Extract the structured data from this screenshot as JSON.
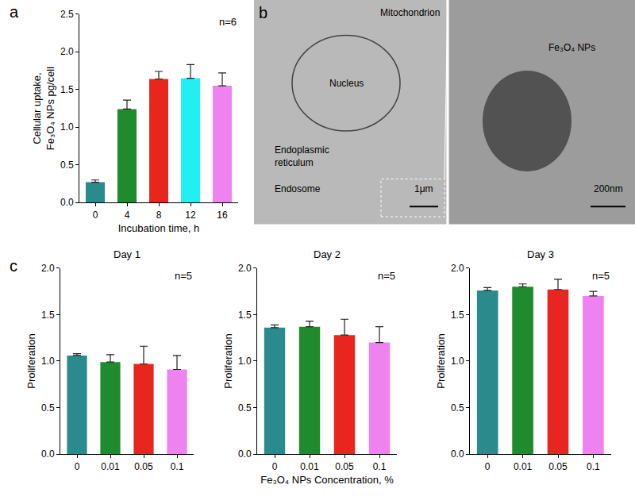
{
  "chart_data": [
    {
      "panel": "a",
      "type": "bar",
      "xlabel": "Incubation time, h",
      "ylabel": "Cellular uptake,\nFe₃O₄ NPs pg/cell",
      "annotations": [
        "n=6"
      ],
      "categories": [
        "0",
        "4",
        "8",
        "12",
        "16"
      ],
      "values": [
        0.27,
        1.24,
        1.64,
        1.65,
        1.55
      ],
      "errors": [
        0.03,
        0.12,
        0.1,
        0.18,
        0.17
      ],
      "colors": [
        "#2b8a8c",
        "#1f8a2e",
        "#e8261f",
        "#22f0f0",
        "#ee82ee"
      ],
      "ylim": [
        0,
        2.5
      ],
      "yticks": [
        {
          "value": 0,
          "label": "0.0"
        },
        0.5,
        {
          "value": 1,
          "label": "1.0"
        },
        1.5,
        {
          "value": 2,
          "label": "2.0"
        },
        2.5
      ]
    },
    {
      "panel": "c",
      "type": "bar",
      "title": "Day 1",
      "ylabel": "Proliferation",
      "annotations": [
        "n=5"
      ],
      "categories": [
        "0",
        "0.01",
        "0.05",
        "0.1"
      ],
      "values": [
        1.06,
        0.99,
        0.97,
        0.91
      ],
      "errors": [
        0.02,
        0.08,
        0.19,
        0.15
      ],
      "colors": [
        "#2b8a8c",
        "#1f8a2e",
        "#e8261f",
        "#ee82ee"
      ],
      "ylim": [
        0,
        2
      ],
      "yticks": [
        {
          "value": 0,
          "label": "0.0"
        },
        0.5,
        {
          "value": 1,
          "label": "1.0"
        },
        1.5,
        {
          "value": 2,
          "label": "2.0"
        }
      ]
    },
    {
      "type": "bar",
      "title": "Day 2",
      "ylabel": "Proliferation",
      "xlabel": "Fe₃O₄ NPs Concentration, %",
      "annotations": [
        "n=5"
      ],
      "categories": [
        "0",
        "0.01",
        "0.05",
        "0.1"
      ],
      "values": [
        1.36,
        1.37,
        1.28,
        1.2
      ],
      "errors": [
        0.03,
        0.06,
        0.17,
        0.17
      ],
      "colors": [
        "#2b8a8c",
        "#1f8a2e",
        "#e8261f",
        "#ee82ee"
      ],
      "ylim": [
        0,
        2
      ],
      "yticks": [
        {
          "value": 0,
          "label": "0.0"
        },
        0.5,
        {
          "value": 1,
          "label": "1.0"
        },
        1.5,
        {
          "value": 2,
          "label": "2.0"
        }
      ]
    },
    {
      "type": "bar",
      "title": "Day 3",
      "ylabel": "Proliferation",
      "annotations": [
        "n=5"
      ],
      "categories": [
        "0",
        "0.01",
        "0.05",
        "0.1"
      ],
      "values": [
        1.76,
        1.8,
        1.77,
        1.7
      ],
      "errors": [
        0.03,
        0.03,
        0.11,
        0.05
      ],
      "colors": [
        "#2b8a8c",
        "#1f8a2e",
        "#e8261f",
        "#ee82ee"
      ],
      "ylim": [
        0,
        2
      ],
      "yticks": [
        {
          "value": 0,
          "label": "0.0"
        },
        0.5,
        {
          "value": 1,
          "label": "1.0"
        },
        1.5,
        {
          "value": 2,
          "label": "2.0"
        }
      ]
    }
  ],
  "micrograph": {
    "panel": "b",
    "labels": {
      "mitochondrion": "Mitochondrion",
      "nucleus": "Nucleus",
      "er": "Endoplasmic\nreticulum",
      "endosome": "Endosome",
      "nps": "Fe₃O₄ NPs"
    },
    "scale_bars": {
      "left": "1μm",
      "right": "200nm"
    }
  }
}
